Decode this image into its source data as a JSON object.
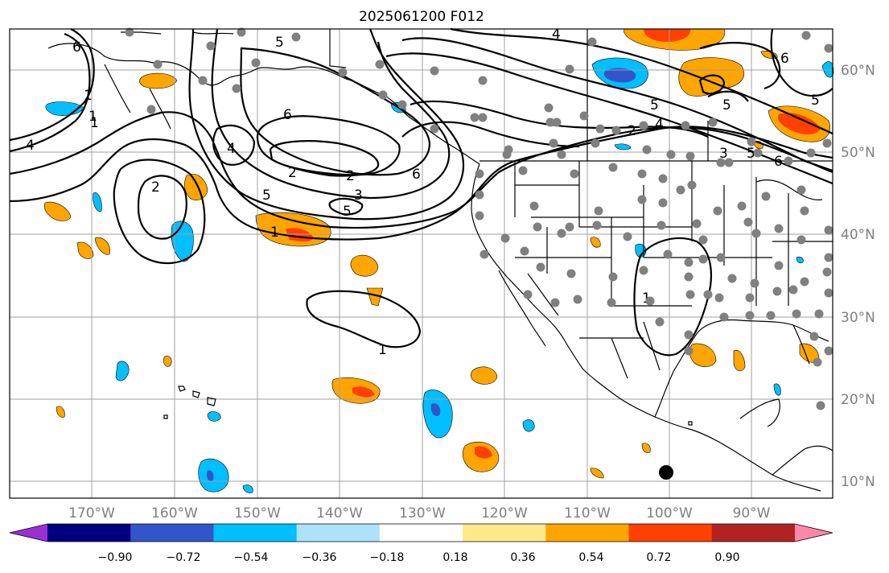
{
  "title": "2025061200 F012",
  "longitude_labels": [
    "170°W",
    "160°W",
    "150°W",
    "140°W",
    "130°W",
    "120°W",
    "110°W",
    "100°W",
    "90°W"
  ],
  "latitude_labels": [
    "60°N",
    "50°N",
    "40°N",
    "30°N",
    "20°N",
    "10°N"
  ],
  "colorbar": {
    "ticks": [
      "−0.90",
      "−0.72",
      "−0.54",
      "−0.36",
      "−0.18",
      "0.18",
      "0.36",
      "0.54",
      "0.72",
      "0.90"
    ],
    "colors": [
      "#9b30d0",
      "#000080",
      "#3355cc",
      "#00bfff",
      "#aee2fb",
      "#ffffff",
      "#ffe98a",
      "#ffa500",
      "#ff4000",
      "#b22222",
      "#ff88aa"
    ]
  },
  "contour_labels": [
    "6",
    "4",
    "1",
    "1",
    "6",
    "4",
    "5",
    "2",
    "3",
    "5",
    "2",
    "6",
    "1",
    "5",
    "2",
    "3",
    "4",
    "5",
    "6",
    "5",
    "6",
    "5",
    "4",
    "1",
    "2",
    "1",
    "1",
    "5"
  ],
  "station_marker_color": "#808080",
  "contour_color": "#000000",
  "gridline_color": "#a0a0a0"
}
